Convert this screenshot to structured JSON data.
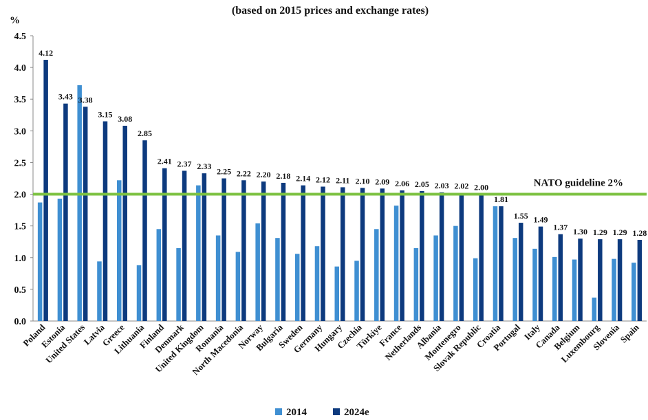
{
  "chart_data": {
    "type": "bar",
    "title": "(based on 2015 prices and exchange rates)",
    "y_label": "%",
    "categories": [
      "Poland",
      "Estonia",
      "United States",
      "Latvia",
      "Greece",
      "Lithuania",
      "Finland",
      "Denmark",
      "United Kingdom",
      "Romania",
      "North Macedonia",
      "Norway",
      "Bulgaria",
      "Sweden",
      "Germany",
      "Hungary",
      "Czechia",
      "Türkiye",
      "France",
      "Netherlands",
      "Albania",
      "Montenegro",
      "Slovak Republic",
      "Croatia",
      "Portugal",
      "Italy",
      "Canada",
      "Belgium",
      "Luxembourg",
      "Slovenia",
      "Spain"
    ],
    "series": [
      {
        "name": "2014",
        "color": "#3f8fd2",
        "values": [
          1.87,
          1.93,
          3.72,
          0.94,
          2.22,
          0.88,
          1.45,
          1.15,
          2.14,
          1.35,
          1.09,
          1.54,
          1.31,
          1.06,
          1.18,
          0.86,
          0.95,
          1.45,
          1.82,
          1.15,
          1.35,
          1.5,
          0.99,
          1.81,
          1.31,
          1.14,
          1.01,
          0.97,
          0.37,
          0.98,
          0.92
        ]
      },
      {
        "name": "2024e",
        "color": "#0d3a7e",
        "values": [
          4.12,
          3.43,
          3.38,
          3.15,
          3.08,
          2.85,
          2.41,
          2.37,
          2.33,
          2.25,
          2.22,
          2.2,
          2.18,
          2.14,
          2.12,
          2.11,
          2.1,
          2.09,
          2.06,
          2.05,
          2.03,
          2.02,
          2.0,
          1.81,
          1.55,
          1.49,
          1.37,
          1.3,
          1.29,
          1.29,
          1.28
        ],
        "value_labels": [
          "4.12",
          "3.43",
          "3.38",
          "3.15",
          "3.08",
          "2.85",
          "2.41",
          "2.37",
          "2.33",
          "2.25",
          "2.22",
          "2.20",
          "2.18",
          "2.14",
          "2.12",
          "2.11",
          "2.10",
          "2.09",
          "2.06",
          "2.05",
          "2.03",
          "2.02",
          "2.00",
          "1.81",
          "1.55",
          "1.49",
          "1.37",
          "1.30",
          "1.29",
          "1.29",
          "1.28"
        ]
      }
    ],
    "ylim": [
      0,
      4.5
    ],
    "yticks": [
      {
        "value": 0,
        "label": "0.0"
      },
      0.5,
      {
        "value": 1,
        "label": "1.0"
      },
      1.5,
      {
        "value": 2,
        "label": "2.0"
      },
      2.5,
      {
        "value": 3,
        "label": "3.0"
      },
      3.5,
      {
        "value": 4,
        "label": "4.0"
      },
      4.5
    ],
    "reference_line": {
      "value": 2,
      "label": "NATO guideline 2%",
      "color": "#7dc242"
    },
    "legend": "bottom"
  }
}
